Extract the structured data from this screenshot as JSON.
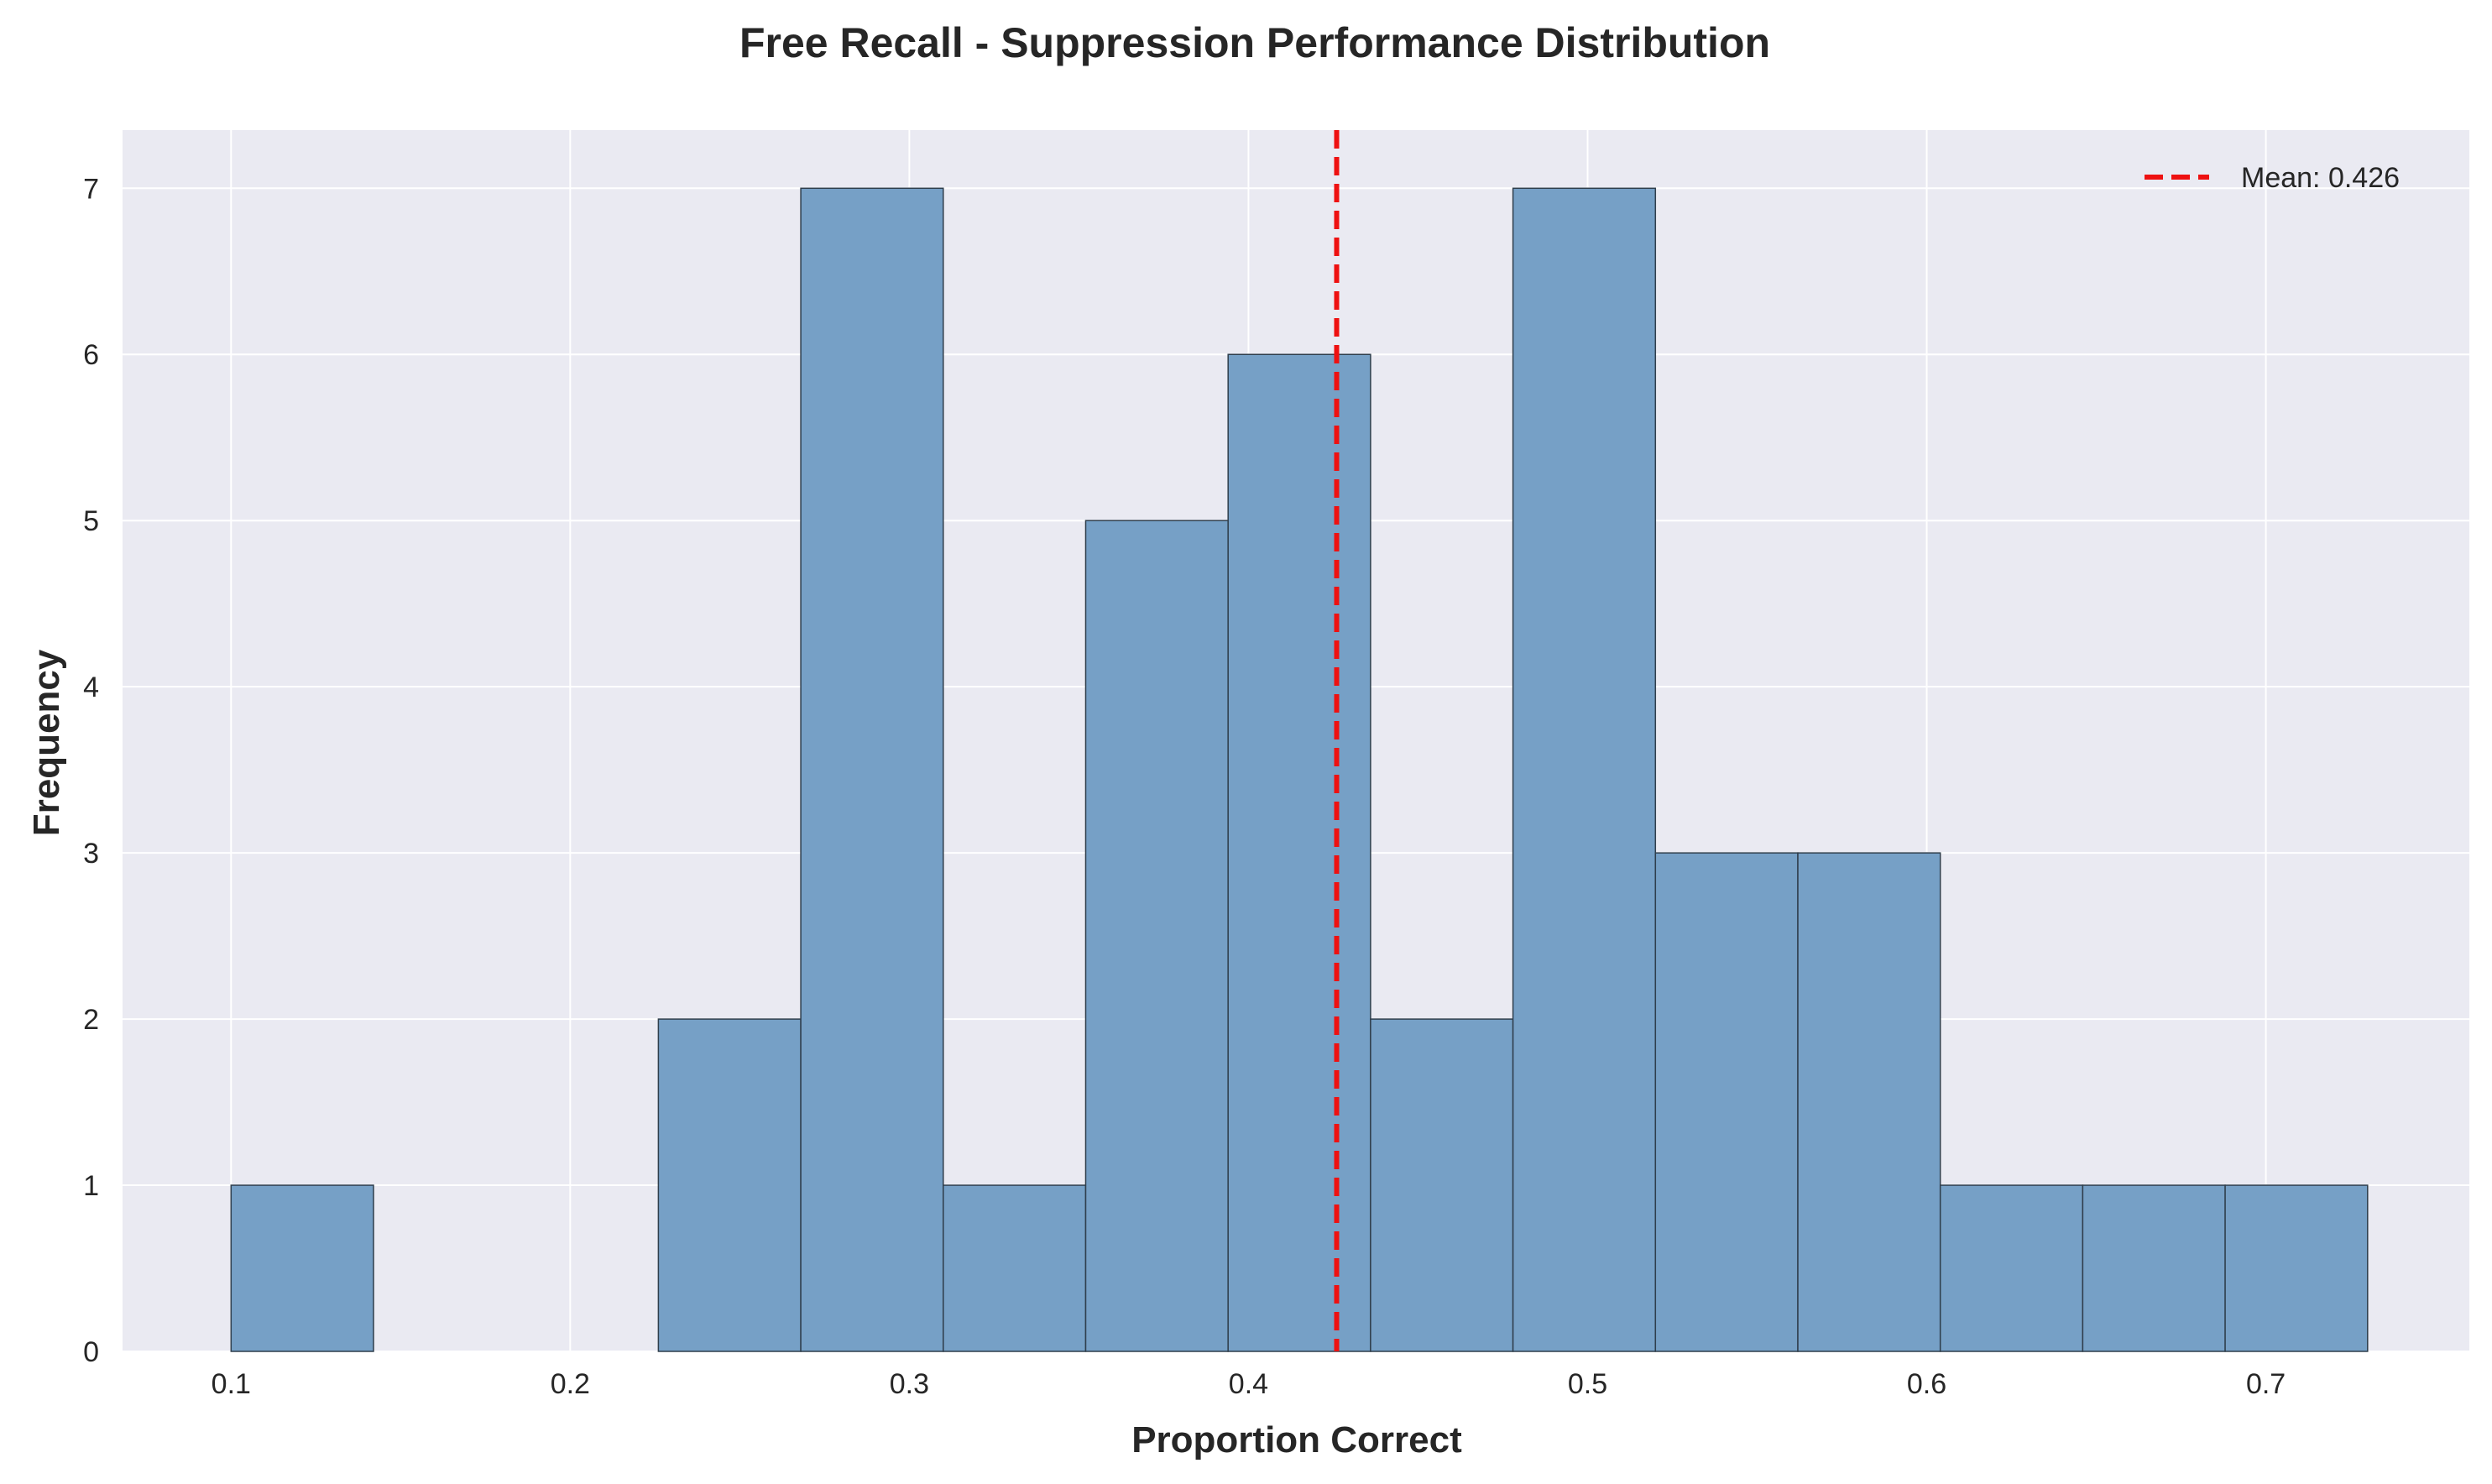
{
  "chart_data": {
    "type": "bar",
    "title": "Free Recall - Suppression Performance Distribution",
    "xlabel": "Proportion Correct",
    "ylabel": "Frequency",
    "xlim": [
      0.068,
      0.76
    ],
    "ylim": [
      0,
      7.35
    ],
    "xticks": [
      "0.1",
      "0.2",
      "0.3",
      "0.4",
      "0.5",
      "0.6",
      "0.7"
    ],
    "yticks": [
      "0",
      "1",
      "2",
      "3",
      "4",
      "5",
      "6",
      "7"
    ],
    "bins": [
      {
        "start": 0.1,
        "end": 0.142,
        "count": 1
      },
      {
        "start": 0.142,
        "end": 0.184,
        "count": 0
      },
      {
        "start": 0.184,
        "end": 0.226,
        "count": 0
      },
      {
        "start": 0.226,
        "end": 0.268,
        "count": 2
      },
      {
        "start": 0.268,
        "end": 0.31,
        "count": 7
      },
      {
        "start": 0.31,
        "end": 0.352,
        "count": 1
      },
      {
        "start": 0.352,
        "end": 0.394,
        "count": 5
      },
      {
        "start": 0.394,
        "end": 0.436,
        "count": 6
      },
      {
        "start": 0.436,
        "end": 0.478,
        "count": 2
      },
      {
        "start": 0.478,
        "end": 0.52,
        "count": 7
      },
      {
        "start": 0.52,
        "end": 0.562,
        "count": 3
      },
      {
        "start": 0.562,
        "end": 0.604,
        "count": 3
      },
      {
        "start": 0.604,
        "end": 0.646,
        "count": 1
      },
      {
        "start": 0.646,
        "end": 0.688,
        "count": 1
      },
      {
        "start": 0.688,
        "end": 0.73,
        "count": 1
      }
    ],
    "mean": 0.426,
    "legend": {
      "label": "Mean: 0.426",
      "placement": "top-right"
    },
    "grid": true,
    "colors": {
      "bar_fill": "#76a0c6",
      "bar_edge": "#2f3e4c",
      "mean_line": "#ee1111",
      "plot_bg": "#eaeaf2",
      "grid": "#ffffff"
    }
  }
}
